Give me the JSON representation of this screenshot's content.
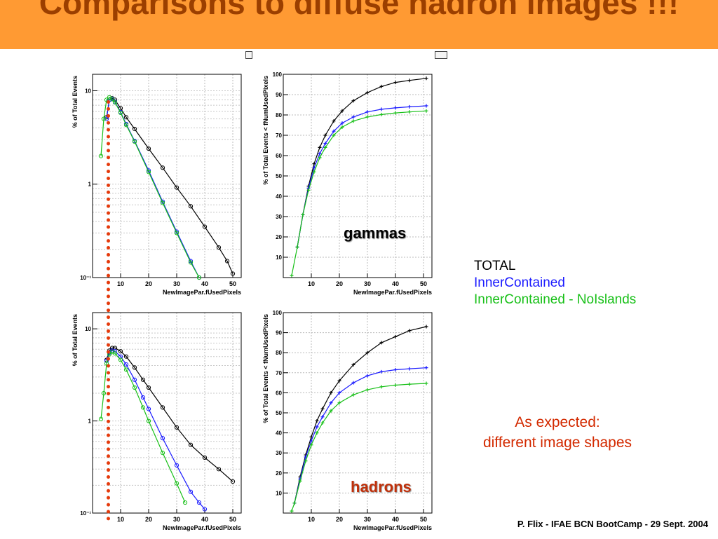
{
  "slide": {
    "title": "Comparisons to diffuse hadron images !!!",
    "footer": "P. Flix - IFAE BCN BootCamp -  29 Sept. 2004",
    "note_line1": "As expected:",
    "note_line2": "different image shapes",
    "label_gammas": "gammas",
    "label_hadrons": "hadrons",
    "banner_color": "#ff9a33",
    "cut_line_color": "#e53a0c"
  },
  "legend": [
    {
      "label": "TOTAL",
      "color": "#000000"
    },
    {
      "label": "InnerContained",
      "color": "#1a1aff"
    },
    {
      "label": "InnerContained - NoIslands",
      "color": "#18c018"
    }
  ],
  "chart_data": [
    {
      "id": "gammas-diff",
      "type": "line",
      "log_y": true,
      "xlabel": "NewImagePar.fUsedPixels",
      "ylabel": "% of Total Events",
      "xlim": [
        0,
        53
      ],
      "ylim": [
        0.1,
        15
      ],
      "xticks": [
        10,
        20,
        30,
        40,
        50
      ],
      "yticks": [
        {
          "v": 0.1,
          "label": "10⁻¹"
        },
        {
          "v": 1,
          "label": "1"
        },
        {
          "v": 10,
          "label": "10"
        }
      ],
      "grid": true,
      "series": [
        {
          "color": "#000000",
          "x": [
            5,
            6,
            7,
            8,
            10,
            12,
            15,
            20,
            25,
            30,
            35,
            40,
            45,
            48,
            50
          ],
          "y": [
            5.2,
            8.0,
            8.3,
            8.0,
            6.5,
            5.2,
            3.9,
            2.4,
            1.5,
            0.92,
            0.58,
            0.35,
            0.21,
            0.15,
            0.11
          ]
        },
        {
          "color": "#1a1aff",
          "x": [
            5,
            6,
            7,
            8,
            10,
            12,
            15,
            20,
            25,
            30,
            35,
            38
          ],
          "y": [
            5.0,
            8.0,
            8.2,
            7.6,
            5.9,
            4.4,
            2.9,
            1.4,
            0.65,
            0.31,
            0.15,
            0.1
          ]
        },
        {
          "color": "#18c018",
          "x": [
            3,
            4,
            5,
            6,
            7,
            8,
            10,
            12,
            15,
            20,
            25,
            30,
            35,
            38
          ],
          "y": [
            2.0,
            5.0,
            8.0,
            8.5,
            8.1,
            7.5,
            5.8,
            4.3,
            2.85,
            1.35,
            0.63,
            0.3,
            0.145,
            0.1
          ]
        }
      ]
    },
    {
      "id": "gammas-cum",
      "type": "line",
      "log_y": false,
      "xlabel": "NewImagePar.fUsedPixels",
      "ylabel": "% of Total Events < fNumUsedPixels",
      "xlim": [
        0,
        53
      ],
      "ylim": [
        0,
        100
      ],
      "xticks": [
        10,
        20,
        30,
        40,
        50
      ],
      "yticks": [
        {
          "v": 10,
          "label": "10"
        },
        {
          "v": 20,
          "label": "20"
        },
        {
          "v": 30,
          "label": "30"
        },
        {
          "v": 40,
          "label": "40"
        },
        {
          "v": 50,
          "label": "50"
        },
        {
          "v": 60,
          "label": "60"
        },
        {
          "v": 70,
          "label": "70"
        },
        {
          "v": 80,
          "label": "80"
        },
        {
          "v": 90,
          "label": "90"
        },
        {
          "v": 100,
          "label": "100"
        }
      ],
      "grid": true,
      "series": [
        {
          "color": "#000000",
          "x": [
            5,
            7,
            9,
            11,
            13,
            15,
            18,
            21,
            25,
            30,
            35,
            40,
            45,
            51
          ],
          "y": [
            15,
            31,
            45,
            56,
            64,
            70,
            77,
            82,
            87,
            91,
            94,
            96,
            97,
            98
          ]
        },
        {
          "color": "#1a1aff",
          "x": [
            5,
            7,
            9,
            11,
            13,
            15,
            18,
            21,
            25,
            30,
            35,
            40,
            45,
            51
          ],
          "y": [
            15,
            31,
            44,
            54,
            61,
            66,
            72,
            76,
            79,
            81.5,
            82.8,
            83.5,
            84,
            84.5
          ]
        },
        {
          "color": "#18c018",
          "x": [
            3,
            5,
            7,
            9,
            11,
            13,
            15,
            18,
            21,
            25,
            30,
            35,
            40,
            45,
            51
          ],
          "y": [
            1,
            15,
            31,
            43,
            52,
            59,
            64,
            70,
            74,
            77,
            79,
            80.2,
            81,
            81.5,
            82
          ]
        }
      ]
    },
    {
      "id": "hadrons-diff",
      "type": "line",
      "log_y": true,
      "xlabel": "NewImagePar.fUsedPixels",
      "ylabel": "% of Total Events",
      "xlim": [
        0,
        53
      ],
      "ylim": [
        0.1,
        15
      ],
      "xticks": [
        10,
        20,
        30,
        40,
        50
      ],
      "yticks": [
        {
          "v": 0.1,
          "label": "10⁻¹"
        },
        {
          "v": 1,
          "label": "1"
        },
        {
          "v": 10,
          "label": "10"
        }
      ],
      "grid": true,
      "series": [
        {
          "color": "#000000",
          "x": [
            5,
            6,
            7,
            8,
            10,
            12,
            15,
            18,
            20,
            25,
            30,
            35,
            40,
            45,
            50
          ],
          "y": [
            4.6,
            5.8,
            6.2,
            6.2,
            5.7,
            5.0,
            3.8,
            2.8,
            2.3,
            1.4,
            0.85,
            0.55,
            0.4,
            0.3,
            0.22
          ]
        },
        {
          "color": "#1a1aff",
          "x": [
            5,
            6,
            7,
            8,
            10,
            12,
            15,
            18,
            20,
            25,
            30,
            35,
            38,
            40
          ],
          "y": [
            4.5,
            5.5,
            5.8,
            5.7,
            5.0,
            4.1,
            2.8,
            1.8,
            1.35,
            0.65,
            0.33,
            0.17,
            0.13,
            0.11
          ]
        },
        {
          "color": "#18c018",
          "x": [
            3,
            4,
            5,
            6,
            7,
            8,
            10,
            12,
            15,
            18,
            20,
            25,
            30,
            33
          ],
          "y": [
            1.05,
            2.0,
            4.2,
            5.3,
            5.6,
            5.4,
            4.6,
            3.6,
            2.3,
            1.4,
            1.0,
            0.45,
            0.21,
            0.13
          ]
        }
      ]
    },
    {
      "id": "hadrons-cum",
      "type": "line",
      "log_y": false,
      "xlabel": "NewImagePar.fUsedPixels",
      "ylabel": "% of Total Events < fNumUsedPixels",
      "xlim": [
        0,
        53
      ],
      "ylim": [
        0,
        100
      ],
      "xticks": [
        10,
        20,
        30,
        40,
        50
      ],
      "yticks": [
        {
          "v": 10,
          "label": "10"
        },
        {
          "v": 20,
          "label": "20"
        },
        {
          "v": 30,
          "label": "30"
        },
        {
          "v": 40,
          "label": "40"
        },
        {
          "v": 50,
          "label": "50"
        },
        {
          "v": 60,
          "label": "60"
        },
        {
          "v": 70,
          "label": "70"
        },
        {
          "v": 80,
          "label": "80"
        },
        {
          "v": 90,
          "label": "90"
        },
        {
          "v": 100,
          "label": "100"
        }
      ],
      "grid": true,
      "series": [
        {
          "color": "#000000",
          "x": [
            4,
            6,
            8,
            10,
            12,
            14,
            17,
            20,
            25,
            30,
            35,
            40,
            45,
            51
          ],
          "y": [
            5,
            18,
            29,
            38,
            46,
            52,
            60,
            66,
            74,
            80,
            85,
            88,
            91,
            93
          ]
        },
        {
          "color": "#1a1aff",
          "x": [
            4,
            6,
            8,
            10,
            12,
            14,
            17,
            20,
            25,
            30,
            35,
            40,
            45,
            51
          ],
          "y": [
            5,
            17,
            28,
            36,
            43,
            48,
            55,
            60,
            65,
            68.5,
            70.5,
            71.5,
            72,
            72.5
          ]
        },
        {
          "color": "#18c018",
          "x": [
            3,
            4,
            6,
            8,
            10,
            12,
            14,
            17,
            20,
            25,
            30,
            35,
            40,
            45,
            51
          ],
          "y": [
            1,
            5,
            16,
            26,
            34,
            40,
            45,
            51,
            55,
            59,
            61.5,
            63,
            63.8,
            64.3,
            64.7
          ]
        }
      ]
    }
  ]
}
